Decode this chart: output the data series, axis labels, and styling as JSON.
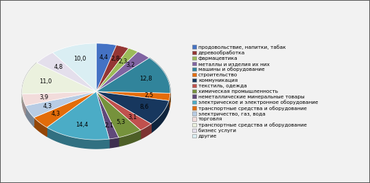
{
  "labels": [
    "продовольствие, напитки, табак",
    "деревообработка",
    "фармацевтика",
    "металлы и изделия их них",
    "машины и оборудование",
    "строительство",
    "коммуникация",
    "текстиль, одежда",
    "химическая промышленность",
    "неметаллические минеральные товары",
    "электрическое и электронное оборудование",
    "транспортные средства и оборудование",
    "электричество, газ, вода",
    "торговля",
    "транспортные средства и оборудование",
    "бизнес услуги",
    "другие"
  ],
  "values": [
    4.4,
    2.8,
    2.3,
    3.2,
    12.8,
    2.5,
    8.6,
    3.1,
    5.3,
    2.1,
    14.4,
    4.3,
    4.3,
    3.9,
    11.0,
    4.8,
    10.0
  ],
  "colors": [
    "#4472C4",
    "#943634",
    "#9BBB59",
    "#8064A2",
    "#31849B",
    "#E46C0A",
    "#17375E",
    "#C0504D",
    "#76923C",
    "#60497A",
    "#4BACC6",
    "#E36C09",
    "#B8CCE4",
    "#F2DCDB",
    "#EBF1DE",
    "#E4DFEC",
    "#DAEEF3"
  ],
  "bg_color": "#F2F2F2",
  "border_color": "#595959",
  "startangle": 90,
  "depth": 0.12
}
